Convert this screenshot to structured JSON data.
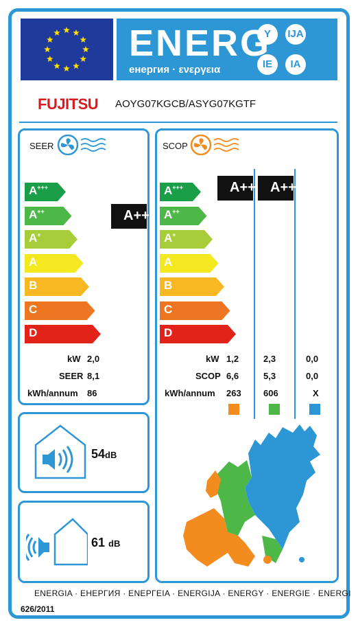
{
  "header": {
    "title": "ENERG",
    "subtitle": "енергия · ενεργεια",
    "lang_badges": [
      "Y",
      "IJA",
      "IE",
      "IA"
    ]
  },
  "supplier": {
    "brand": "FUJITSU",
    "model": "AOYG07KGCB/ASYG07KGTF"
  },
  "scale_classes": [
    "A+++",
    "A++",
    "A+",
    "A",
    "B",
    "C",
    "D"
  ],
  "scale_colors": [
    "#1a9e48",
    "#4db748",
    "#a7ce38",
    "#f4e81e",
    "#f8b824",
    "#ec7622",
    "#e2231a"
  ],
  "seer": {
    "label": "SEER",
    "class": "A++",
    "rows": [
      {
        "label": "kW",
        "value": "2,0"
      },
      {
        "label": "SEER",
        "value": "8,1"
      },
      {
        "label": "kWh/annum",
        "value": "86"
      }
    ]
  },
  "scop": {
    "label": "SCOP",
    "classes": [
      "A+++",
      "A+++"
    ],
    "row_labels": [
      "kW",
      "SCOP",
      "kWh/annum"
    ],
    "columns": [
      {
        "color": "#f28c1e",
        "values": [
          "1,2",
          "6,6",
          "263"
        ]
      },
      {
        "color": "#4db748",
        "values": [
          "2,3",
          "5,3",
          "606"
        ]
      },
      {
        "color": "#2d97d6",
        "values": [
          "0,0",
          "0,0",
          "X"
        ]
      }
    ]
  },
  "noise": {
    "indoor": {
      "value": "54",
      "unit": "dB"
    },
    "outdoor": {
      "value": "61",
      "unit": "dB"
    }
  },
  "footer": {
    "languages": "ENERGIA · ЕНЕРГИЯ · ΕΝΕΡΓΕΙΑ · ENERGIJA · ENERGY · ENERGIE · ENERGI",
    "regulation": "626/2011"
  },
  "icons": [
    "eu-flag-icon",
    "fan-cooling-icon",
    "fan-heating-icon",
    "speaker-house-icon",
    "speaker-outdoor-icon",
    "europe-climate-map-icon"
  ]
}
